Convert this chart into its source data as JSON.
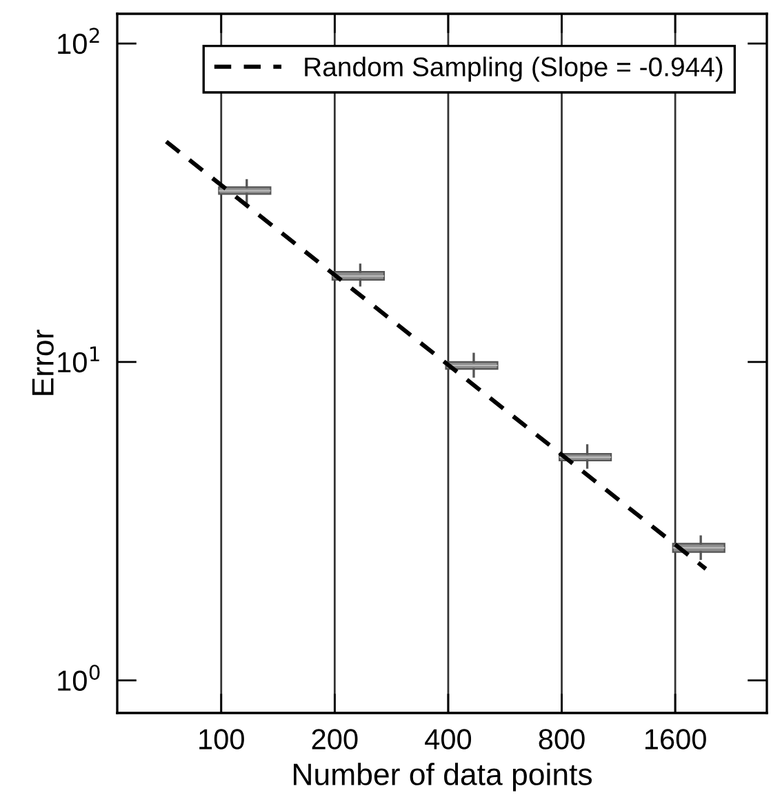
{
  "chart_data": {
    "type": "box",
    "xlabel": "Number of data points",
    "ylabel": "Error",
    "log": "xy",
    "xlim": [
      53,
      2800
    ],
    "ylim": [
      0.79,
      124
    ],
    "xticks": [
      100,
      200,
      400,
      800,
      1600
    ],
    "yticks": [
      {
        "value": 1,
        "label": "10$^{0}$"
      },
      {
        "value": 10,
        "label": "10$^{1}$"
      },
      {
        "value": 100,
        "label": "10$^{2}$"
      }
    ],
    "grid": "x",
    "legend": "top right",
    "series": [
      {
        "color": "#8c8c8c",
        "x": [
          100,
          200,
          400,
          800,
          1600
        ],
        "boxes": [
          {
            "low": 31.7,
            "q1": 33.7,
            "median": 34.5,
            "q3": 35.4,
            "high": 37.2
          },
          {
            "low": 17.4,
            "q1": 18.1,
            "median": 18.6,
            "q3": 19.2,
            "high": 20.2
          },
          {
            "low": 9.0,
            "q1": 9.5,
            "median": 9.75,
            "q3": 10.0,
            "high": 10.6
          },
          {
            "low": 4.66,
            "q1": 4.9,
            "median": 5.02,
            "q3": 5.15,
            "high": 5.47
          },
          {
            "low": 2.41,
            "q1": 2.53,
            "median": 2.61,
            "q3": 2.69,
            "high": 2.83
          }
        ]
      },
      {
        "type": "line",
        "name": "Random Sampling (Slope = -0.944)",
        "color": "#000000",
        "line_style": "dashed",
        "marker": "none",
        "x": [
          71.5,
          1929
        ],
        "values": [
          49.2,
          2.24
        ]
      }
    ]
  }
}
